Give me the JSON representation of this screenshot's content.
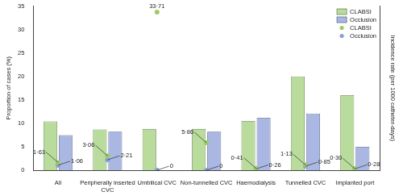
{
  "chart_data": {
    "type": "bar",
    "categories": [
      "All",
      "Peripherally inserted CVC",
      "Umbilical CVC",
      "Non-tunnelled CVC",
      "Haemodialysis",
      "Tunnelled CVC",
      "Implanted port"
    ],
    "y_label": "Proportion of cases (%)",
    "y2_label": "Incidence rate (per 1000 catheter-days)",
    "ylim": [
      0,
      35
    ],
    "yticks": [
      0,
      5,
      10,
      15,
      20,
      25,
      30,
      35
    ],
    "y2lim": [
      0,
      35
    ],
    "grid": false,
    "legend": "upper right",
    "series": [
      {
        "name": "CLABSI",
        "type": "bar",
        "color": "#b9dc9c",
        "values": [
          10.4,
          8.7,
          8.8,
          8.8,
          10.5,
          20.0,
          16.0
        ]
      },
      {
        "name": "Occlusion",
        "type": "bar",
        "color": "#a9b7e2",
        "values": [
          7.5,
          8.2,
          0,
          8.2,
          11.2,
          12.1,
          5.0
        ]
      },
      {
        "name": "CLABSI",
        "type": "scatter",
        "marker": "circle",
        "axis": "y2",
        "color": "#9ccc65",
        "data_labels": true,
        "values": [
          1.63,
          3.06,
          33.71,
          5.86,
          0.41,
          1.13,
          0.3
        ],
        "value_labels": [
          "1·63",
          "3·06",
          "33·71",
          "5·86",
          "0·41",
          "1·13",
          "0·30"
        ]
      },
      {
        "name": "Occlusion",
        "type": "scatter",
        "marker": "circle",
        "axis": "y2",
        "color": "#8c9fd9",
        "data_labels": true,
        "values": [
          1.06,
          2.21,
          0,
          0,
          0.26,
          0.85,
          0.28
        ],
        "value_labels": [
          "1·06",
          "2·21",
          "0",
          "0",
          "0·26",
          "0·85",
          "0·28"
        ]
      }
    ]
  }
}
